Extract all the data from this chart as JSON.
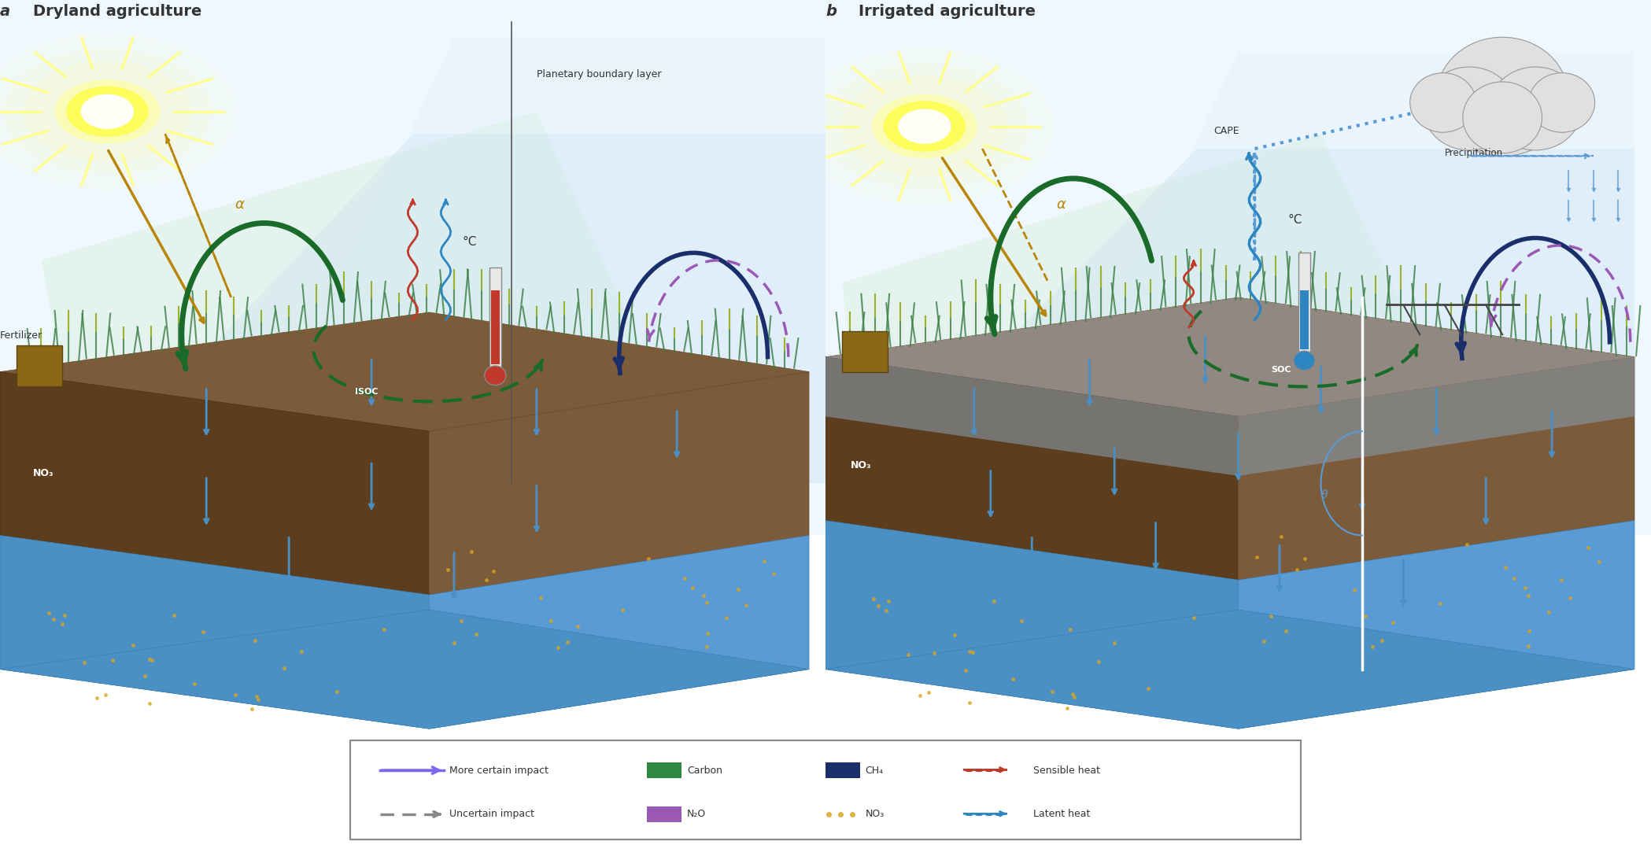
{
  "panel_a_title": "Dryland agriculture",
  "panel_b_title": "Irrigated agriculture",
  "panel_a_label": "a",
  "panel_b_label": "b",
  "bg_color": "#ffffff",
  "sky_color_top": "#e8f4fc",
  "sky_color_bottom": "#c5e0f0",
  "soil_top_color": "#8B6340",
  "soil_mid_color": "#6B4C2A",
  "soil_bottom_color": "#4682B4",
  "ground_water_color": "#5B9BD5",
  "grass_color": "#4a8c3f",
  "sun_color": "#FFFF00",
  "sun_ray_color": "#FFFF88",
  "alpha_arrow_color": "#B8860B",
  "dark_green_arrow": "#1a6b2a",
  "navy_arrow": "#1a2e6b",
  "purple_dashed": "#9B59B6",
  "red_squiggle": "#C0392B",
  "blue_squiggle": "#2E86C1",
  "blue_arrow_down": "#5B9BD5",
  "no3_color": "#ffffff",
  "isoc_color": "#ffffff",
  "legend_border": "#888888",
  "legend_bg": "#ffffff",
  "carbon_color": "#2d8a3e",
  "ch4_color": "#1a2e6b",
  "n2o_color": "#9B59B6",
  "no3_dot_color": "#DAA520",
  "sensible_heat_color": "#C0392B",
  "latent_heat_color": "#2E86C1",
  "planetary_text_color": "#333333",
  "cape_text_color": "#333333",
  "precip_text_color": "#333333",
  "theta_color": "#5B9BD5",
  "soc_label_color": "#ffffff",
  "water_layer_color": "#A8C8E8"
}
